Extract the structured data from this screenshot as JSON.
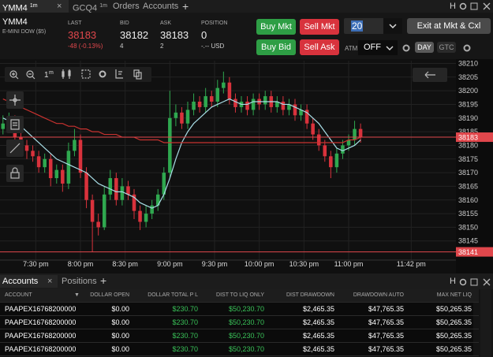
{
  "top_tabs": [
    {
      "label": "YMM4",
      "sup": "1m"
    },
    {
      "label": "GCQ4",
      "sup": "1m"
    },
    {
      "label": "Orders"
    },
    {
      "label": "Accounts"
    }
  ],
  "top_add": "+",
  "top_control": "H",
  "quote": {
    "symbol": "YMM4",
    "description": "E-MINI DOW ($5)",
    "last_label": "LAST",
    "last": 38183,
    "change": "-48 (-0.13%)",
    "bid_label": "BID",
    "bid": 38182,
    "bid_size": 4,
    "ask_label": "ASK",
    "ask": 38183,
    "ask_size": 2,
    "position_label": "POSITION",
    "position": 0,
    "position_value": "-.-- USD"
  },
  "order": {
    "buy_mkt": "Buy Mkt",
    "sell_mkt": "Sell Mkt",
    "buy_bid": "Buy Bid",
    "sell_ask": "Sell Ask",
    "quantity": 20,
    "exit": "Exit at Mkt & Cxl",
    "atm_label": "ATM",
    "atm_value": "OFF",
    "tif": [
      "DAY",
      "GTC"
    ]
  },
  "chart_toolbar": {
    "interval": "1",
    "interval_sup": "m"
  },
  "chart_data": {
    "type": "candlestick",
    "x": [
      1148,
      1152,
      1156,
      1160,
      1164,
      1168,
      1172,
      1176,
      1180,
      1184,
      1188,
      1192,
      1196,
      1200,
      1204,
      1208,
      1212,
      1216,
      1220,
      1224,
      1228,
      1232,
      1236,
      1240,
      1244,
      1248,
      1252,
      1256,
      1260,
      1264,
      1268,
      1272,
      1276,
      1280,
      1284,
      1288,
      1292,
      1296,
      1300,
      1304,
      1308,
      1312,
      1316,
      1320,
      1324,
      1328,
      1332,
      1336,
      1340,
      1344,
      1348,
      1352,
      1356,
      1360,
      1364,
      1368,
      1372,
      1376,
      1380,
      1384,
      1388
    ],
    "open": [
      38186,
      38188,
      38189,
      38183,
      38180,
      38178,
      38176,
      38172,
      38175,
      38168,
      38171,
      38166,
      38178,
      38182,
      38170,
      38160,
      38152,
      38150,
      38162,
      38168,
      38160,
      38165,
      38162,
      38156,
      38152,
      38155,
      38158,
      38162,
      38170,
      38190,
      38192,
      38188,
      38193,
      38196,
      38194,
      38198,
      38196,
      38201,
      38203,
      38197,
      38194,
      38196,
      38193,
      38197,
      38195,
      38198,
      38194,
      38196,
      38193,
      38195,
      38191,
      38193,
      38188,
      38184,
      38180,
      38176,
      38172,
      38177,
      38180,
      38182,
      38186
    ],
    "high": [
      38191,
      38192,
      38191,
      38185,
      38182,
      38180,
      38178,
      38177,
      38177,
      38173,
      38173,
      38181,
      38186,
      38184,
      38172,
      38162,
      38155,
      38165,
      38171,
      38170,
      38168,
      38167,
      38164,
      38158,
      38158,
      38160,
      38164,
      38172,
      38200,
      38195,
      38194,
      38196,
      38199,
      38198,
      38201,
      38200,
      38204,
      38207,
      38205,
      38199,
      38198,
      38198,
      38199,
      38199,
      38200,
      38200,
      38198,
      38198,
      38197,
      38197,
      38195,
      38195,
      38190,
      38186,
      38182,
      38178,
      38179,
      38182,
      38184,
      38189,
      38188
    ],
    "low": [
      38184,
      38186,
      38181,
      38178,
      38175,
      38174,
      38170,
      38170,
      38165,
      38166,
      38163,
      38164,
      38176,
      38168,
      38157,
      38141,
      38147,
      38149,
      38160,
      38158,
      38158,
      38160,
      38153,
      38149,
      38150,
      38153,
      38156,
      38160,
      38168,
      38187,
      38186,
      38186,
      38191,
      38192,
      38192,
      38194,
      38194,
      38199,
      38195,
      38192,
      38192,
      38191,
      38191,
      38193,
      38193,
      38192,
      38192,
      38191,
      38191,
      38189,
      38189,
      38186,
      38182,
      38178,
      38174,
      38168,
      38170,
      38175,
      38178,
      38180,
      38181
    ],
    "close": [
      38188,
      38189,
      38183,
      38180,
      38178,
      38176,
      38172,
      38175,
      38168,
      38171,
      38166,
      38178,
      38182,
      38170,
      38160,
      38152,
      38150,
      38162,
      38168,
      38160,
      38165,
      38162,
      38156,
      38152,
      38155,
      38158,
      38162,
      38170,
      38190,
      38192,
      38188,
      38193,
      38196,
      38194,
      38198,
      38196,
      38201,
      38203,
      38197,
      38194,
      38196,
      38193,
      38197,
      38195,
      38198,
      38194,
      38196,
      38193,
      38195,
      38191,
      38193,
      38188,
      38184,
      38180,
      38176,
      38172,
      38177,
      38180,
      38182,
      38186,
      38183
    ],
    "up_color": "#2fa84f",
    "down_color": "#d9323c",
    "overlays": [
      {
        "color": "#a8dde6",
        "values": [
          38190,
          38189,
          38188,
          38187,
          38185,
          38183,
          38181,
          38179,
          38177,
          38175,
          38174,
          38173,
          38172,
          38171,
          38170,
          38168,
          38166,
          38165,
          38164,
          38163,
          38163,
          38162,
          38161,
          38159,
          38158,
          38157,
          38158,
          38162,
          38168,
          38175,
          38181,
          38185,
          38188,
          38190,
          38192,
          38194,
          38195,
          38196,
          38197,
          38196,
          38195,
          38195,
          38196,
          38196,
          38196,
          38196,
          38196,
          38195,
          38195,
          38194,
          38193,
          38192,
          38190,
          38188,
          38185,
          38182,
          38179,
          38178,
          38179,
          38180,
          38182
        ]
      },
      {
        "color": "#c8322f",
        "values": [
          38197,
          38196,
          38195,
          38194,
          38193,
          38192,
          38191,
          38190,
          38189,
          38188,
          38188,
          38187,
          38187,
          38186,
          38186,
          38185,
          38185,
          38184,
          38184,
          38184,
          38183,
          38183,
          38183,
          38182,
          38182,
          38182,
          38182,
          38181,
          38181,
          38181,
          38181,
          38181,
          38181,
          38181,
          38181,
          38181,
          38181,
          38181,
          38181,
          38181,
          38181,
          38181,
          38181,
          38181,
          38181,
          38181,
          38181,
          38181,
          38181,
          38181,
          38181,
          38181,
          38181,
          38181,
          38181,
          38181,
          38181,
          38181,
          38182,
          38182,
          38183
        ]
      }
    ],
    "price_lines": [
      {
        "value": 38183,
        "color": "#e0474c"
      },
      {
        "value": 38141,
        "color": "#e0474c"
      }
    ],
    "ylim": [
      38138,
      38211
    ],
    "yticks": [
      38145,
      38150,
      38155,
      38160,
      38165,
      38170,
      38175,
      38180,
      38185,
      38190,
      38195,
      38200,
      38205,
      38210
    ],
    "xlim": [
      1146,
      1452
    ],
    "xticks": [
      {
        "value": 1170,
        "label": "7:30 pm"
      },
      {
        "value": 1200,
        "label": "8:00 pm"
      },
      {
        "value": 1230,
        "label": "8:30 pm"
      },
      {
        "value": 1260,
        "label": "9:00 pm"
      },
      {
        "value": 1290,
        "label": "9:30 pm"
      },
      {
        "value": 1320,
        "label": "10:00 pm"
      },
      {
        "value": 1350,
        "label": "10:30 pm"
      },
      {
        "value": 1380,
        "label": "11:00 pm"
      },
      {
        "value": 1422,
        "label": "11:42 pm"
      }
    ],
    "grid": true
  },
  "bottom": {
    "tabs": [
      "Accounts",
      "Positions"
    ],
    "add": "+",
    "control": "H",
    "columns": [
      "ACCOUNT",
      "DOLLAR OPEN",
      "DOLLAR TOTAL P L",
      "DIST TO LIQ ONLY",
      "DIST DRAWDOWN",
      "DRAWDOWN AUTO",
      "MAX NET LIQ"
    ],
    "rows": [
      [
        "PAAPEX16768200000",
        "$0.00",
        "$230.70",
        "$50,230.70",
        "$2,465.35",
        "$47,765.35",
        "$50,265.35"
      ],
      [
        "PAAPEX16768200000",
        "$0.00",
        "$230.70",
        "$50,230.70",
        "$2,465.35",
        "$47,765.35",
        "$50,265.35"
      ],
      [
        "PAAPEX16768200000",
        "$0.00",
        "$230.70",
        "$50,230.70",
        "$2,465.35",
        "$47,765.35",
        "$50,265.35"
      ],
      [
        "PAAPEX16768200000",
        "$0.00",
        "$230.70",
        "$50,230.70",
        "$2,465.35",
        "$47,765.35",
        "$50,265.35"
      ]
    ]
  }
}
